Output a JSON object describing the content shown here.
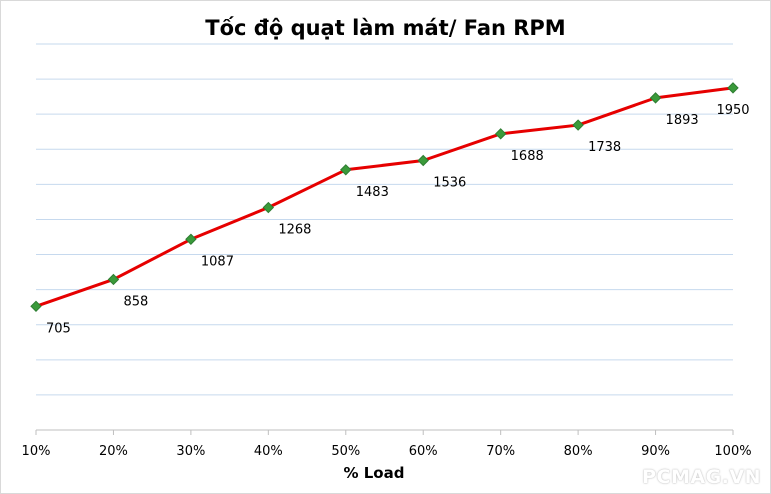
{
  "chart_data": {
    "type": "line",
    "title": "Tốc độ quạt làm mát/ Fan RPM",
    "xlabel": "% Load",
    "ylabel": "",
    "categories": [
      "10%",
      "20%",
      "30%",
      "40%",
      "50%",
      "60%",
      "70%",
      "80%",
      "90%",
      "100%"
    ],
    "series": [
      {
        "values": [
          705,
          858,
          1087,
          1268,
          1483,
          1536,
          1688,
          1738,
          1893,
          1950
        ]
      }
    ],
    "ylim": [
      0,
      2200
    ],
    "y_grid_step": 200,
    "grid": true,
    "legend": "none",
    "data_labels": "below-right",
    "colors": {
      "line": "#e60000",
      "marker_fill": "#3a9a3a",
      "marker_edge": "#2e7d32",
      "grid": "#c6d9ee",
      "axis": "#bfbfbf"
    }
  },
  "watermark": "PCMAG.VN"
}
